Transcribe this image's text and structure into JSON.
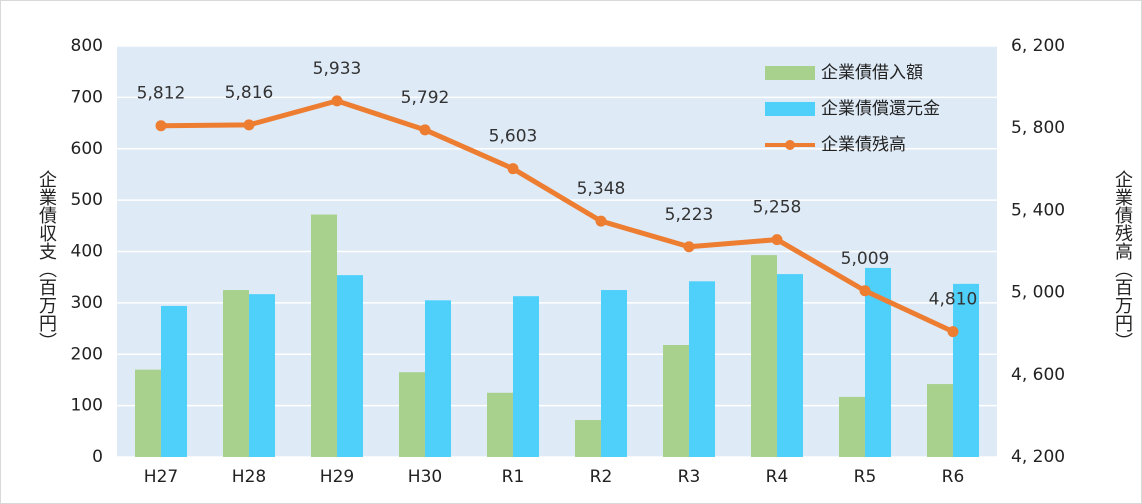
{
  "chart_data": {
    "type": "bar_line",
    "categories": [
      "H27",
      "H28",
      "H29",
      "H30",
      "R1",
      "R2",
      "R3",
      "R4",
      "R5",
      "R6"
    ],
    "ylabel": "企業債収支（百万円）",
    "y2label": "企業債残高（百万円）",
    "ylim": [
      0,
      800
    ],
    "yticks": [
      0,
      100,
      200,
      300,
      400,
      500,
      600,
      700,
      800
    ],
    "y2lim": [
      4200,
      6200
    ],
    "y2ticks": [
      {
        "value": 4200,
        "label": "4, 200"
      },
      {
        "value": 4600,
        "label": "4, 600"
      },
      {
        "value": 5000,
        "label": "5, 000"
      },
      {
        "value": 5400,
        "label": "5, 400"
      },
      {
        "value": 5800,
        "label": "5, 800"
      },
      {
        "value": 6200,
        "label": "6, 200"
      }
    ],
    "grid": true,
    "legend": "upper right",
    "series": [
      {
        "name": "企業債借入額",
        "type": "bar",
        "color": "#a9d18e",
        "values": [
          170,
          325,
          472,
          165,
          125,
          72,
          218,
          393,
          117,
          142
        ]
      },
      {
        "name": "企業債償還元金",
        "type": "bar",
        "color": "#4fd0fb",
        "values": [
          294,
          317,
          354,
          305,
          313,
          325,
          342,
          356,
          368,
          337
        ]
      },
      {
        "name": "企業債残高",
        "type": "line",
        "axis": "y2",
        "color": "#ed7d31",
        "values": [
          5812,
          5816,
          5933,
          5792,
          5603,
          5348,
          5223,
          5258,
          5009,
          4810
        ],
        "value_labels": [
          "5,812",
          "5,816",
          "5,933",
          "5,792",
          "5,603",
          "5,348",
          "5,223",
          "5,258",
          "5,009",
          "4,810"
        ]
      }
    ]
  }
}
